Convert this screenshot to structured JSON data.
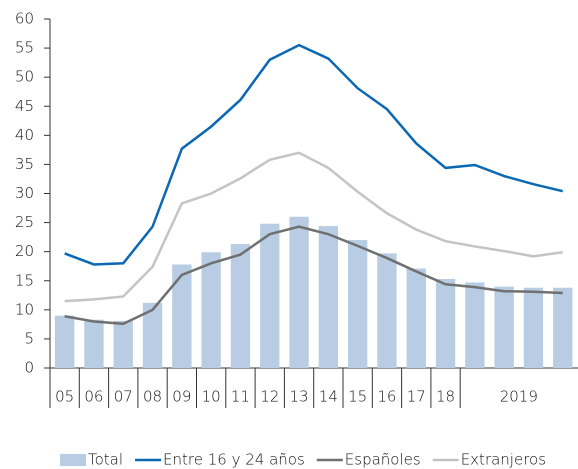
{
  "chart_data": {
    "type": "bar-line",
    "categories": [
      "05",
      "06",
      "07",
      "08",
      "09",
      "10",
      "11",
      "12",
      "13",
      "14",
      "15",
      "16",
      "17",
      "18",
      "2019",
      null,
      null,
      null
    ],
    "series": [
      {
        "name": "Total",
        "type": "bar",
        "color": "#b8cce4",
        "values": [
          9,
          8.3,
          8.1,
          11.2,
          17.8,
          19.9,
          21.3,
          24.8,
          26,
          24.4,
          22,
          19.7,
          17.1,
          15.3,
          14.7,
          14,
          13.8,
          13.8
        ]
      },
      {
        "name": "Entre 16 y 24 años",
        "type": "line",
        "color": "#0a68b4",
        "values": [
          19.7,
          17.8,
          18,
          24.3,
          37.7,
          41.5,
          46.1,
          53,
          55.5,
          53.2,
          48.1,
          44.5,
          38.6,
          34.4,
          34.9,
          33,
          31.6,
          30.4
        ]
      },
      {
        "name": "Españoles",
        "type": "line",
        "color": "#707070",
        "values": [
          8.9,
          8,
          7.6,
          10,
          16,
          18,
          19.5,
          23,
          24.3,
          23,
          21,
          18.9,
          16.6,
          14.4,
          13.9,
          13.2,
          13.1,
          12.9
        ]
      },
      {
        "name": "Extranjeros",
        "type": "line",
        "color": "#c4c4c4",
        "values": [
          11.5,
          11.8,
          12.3,
          17.4,
          28.3,
          30,
          32.6,
          35.8,
          37,
          34.4,
          30.3,
          26.6,
          23.8,
          21.8,
          20.9,
          20.1,
          19.2,
          19.9
        ]
      }
    ],
    "ylim": [
      0,
      60
    ],
    "yticks": [
      0,
      5,
      10,
      15,
      20,
      25,
      30,
      35,
      40,
      45,
      50,
      55,
      60
    ],
    "legend": "bottom"
  }
}
